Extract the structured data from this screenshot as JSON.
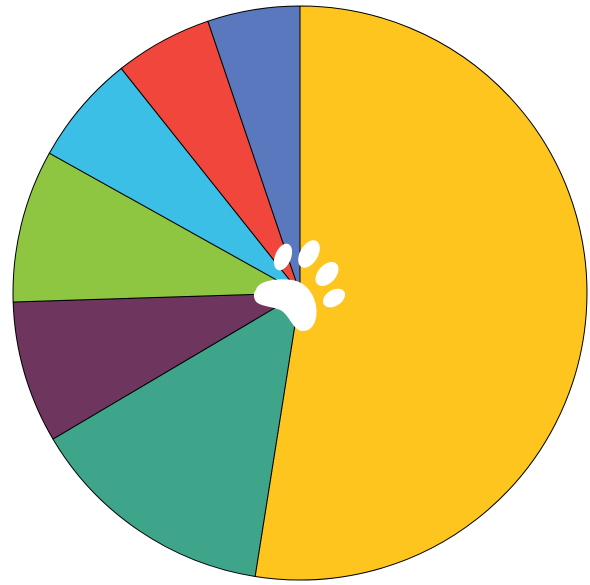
{
  "chart_data": {
    "type": "pie",
    "title": "",
    "start_angle_deg": 0,
    "direction": "clockwise",
    "stroke_color": "#000000",
    "center_icon": "paw-icon",
    "center_icon_color": "#ffffff",
    "slices": [
      {
        "value": 52.5,
        "color": "#FDC51E"
      },
      {
        "value": 14.0,
        "color": "#3FA58A"
      },
      {
        "value": 8.0,
        "color": "#6E355F"
      },
      {
        "value": 8.6,
        "color": "#8EC641"
      },
      {
        "value": 6.2,
        "color": "#3BBFE6"
      },
      {
        "value": 5.5,
        "color": "#F1463B"
      },
      {
        "value": 5.2,
        "color": "#5A78BD"
      }
    ]
  }
}
